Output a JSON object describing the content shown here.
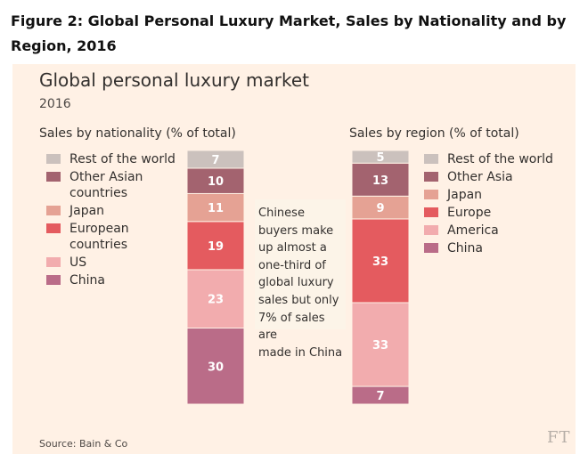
{
  "figure_caption": "Figure 2: Global Personal Luxury Market, Sales by Nationality and by Region, 2016",
  "callout": [
    "Chinese",
    "buyers make",
    "up almost a",
    "one-third of",
    "global luxury",
    "sales but only",
    "7% of sales are",
    "made in China"
  ],
  "source": "Source: Bain & Co",
  "brand": "FT",
  "colors": {
    "rest_of_world": "#cbc1bd",
    "other_asian": "#a3636f",
    "japan": "#e5a294",
    "european": "#e45b5f",
    "us": "#f2acae",
    "china": "#ba6c88",
    "label_text": "#ffffff",
    "background": "#fff1e5"
  },
  "chart_data": {
    "title": "Global personal luxury market",
    "subtitle": "2016",
    "charts": [
      {
        "type": "stacked-bar",
        "title": "Sales by nationality (% of total)",
        "unit": "% of total",
        "legend_position": "left",
        "segments": [
          {
            "name": "China",
            "label_lines": [
              "China"
            ],
            "value": 30,
            "color": "#ba6c88"
          },
          {
            "name": "US",
            "label_lines": [
              "US"
            ],
            "value": 23,
            "color": "#f2acae"
          },
          {
            "name": "European countries",
            "label_lines": [
              "European",
              "countries"
            ],
            "value": 19,
            "color": "#e45b5f"
          },
          {
            "name": "Japan",
            "label_lines": [
              "Japan"
            ],
            "value": 11,
            "color": "#e5a294"
          },
          {
            "name": "Other Asian countries",
            "label_lines": [
              "Other Asian",
              "countries"
            ],
            "value": 10,
            "color": "#a3636f"
          },
          {
            "name": "Rest of the world",
            "label_lines": [
              "Rest of the world"
            ],
            "value": 7,
            "color": "#cbc1bd"
          }
        ]
      },
      {
        "type": "stacked-bar",
        "title": "Sales by region (% of total)",
        "unit": "% of total",
        "legend_position": "right",
        "segments": [
          {
            "name": "China",
            "label_lines": [
              "China"
            ],
            "value": 7,
            "color": "#ba6c88"
          },
          {
            "name": "America",
            "label_lines": [
              "America"
            ],
            "value": 33,
            "color": "#f2acae"
          },
          {
            "name": "Europe",
            "label_lines": [
              "Europe"
            ],
            "value": 33,
            "color": "#e45b5f"
          },
          {
            "name": "Japan",
            "label_lines": [
              "Japan"
            ],
            "value": 9,
            "color": "#e5a294"
          },
          {
            "name": "Other Asia",
            "label_lines": [
              "Other Asia"
            ],
            "value": 13,
            "color": "#a3636f"
          },
          {
            "name": "Rest of the world",
            "label_lines": [
              "Rest of the world"
            ],
            "value": 5,
            "color": "#cbc1bd"
          }
        ]
      }
    ]
  }
}
